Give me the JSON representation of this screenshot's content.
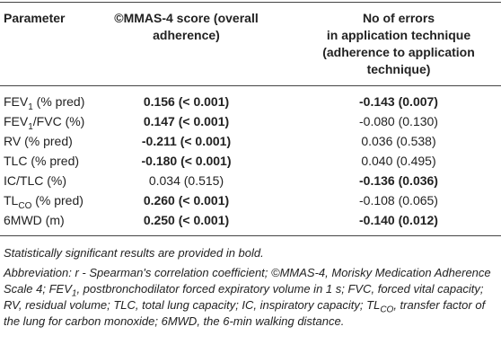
{
  "table": {
    "header": [
      [
        "Parameter"
      ],
      [
        "©MMAS-4 score (overall",
        "adherence)"
      ],
      [
        "No of errors",
        "in application technique",
        "(adherence to application",
        "technique)"
      ]
    ],
    "rows": [
      {
        "label": [
          {
            "text": "FEV"
          },
          {
            "text": "1",
            "sub": true
          },
          {
            "text": " (% pred)"
          }
        ],
        "cells": [
          {
            "text": "0.156 (< 0.001)",
            "bold": true
          },
          {
            "text": "-0.143 (0.007)",
            "bold": true
          }
        ]
      },
      {
        "label": [
          {
            "text": "FEV"
          },
          {
            "text": "1",
            "sub": true
          },
          {
            "text": "/FVC (%)"
          }
        ],
        "cells": [
          {
            "text": "0.147 (< 0.001)",
            "bold": true
          },
          {
            "text": "-0.080 (0.130)",
            "bold": false
          }
        ]
      },
      {
        "label": [
          {
            "text": "RV (% pred)"
          }
        ],
        "cells": [
          {
            "text": "-0.211 (< 0.001)",
            "bold": true
          },
          {
            "text": "0.036 (0.538)",
            "bold": false
          }
        ]
      },
      {
        "label": [
          {
            "text": "TLC (% pred)"
          }
        ],
        "cells": [
          {
            "text": "-0.180 (< 0.001)",
            "bold": true
          },
          {
            "text": "0.040 (0.495)",
            "bold": false
          }
        ]
      },
      {
        "label": [
          {
            "text": "IC/TLC (%)"
          }
        ],
        "cells": [
          {
            "text": "0.034 (0.515)",
            "bold": false
          },
          {
            "text": "-0.136 (0.036)",
            "bold": true
          }
        ]
      },
      {
        "label": [
          {
            "text": "TL"
          },
          {
            "text": "CO",
            "sub": true
          },
          {
            "text": " (% pred)"
          }
        ],
        "cells": [
          {
            "text": "0.260 (< 0.001)",
            "bold": true
          },
          {
            "text": "-0.108 (0.065)",
            "bold": false
          }
        ]
      },
      {
        "label": [
          {
            "text": "6MWD (m)"
          }
        ],
        "cells": [
          {
            "text": "0.250 (< 0.001)",
            "bold": true
          },
          {
            "text": "-0.140 (0.012)",
            "bold": true
          }
        ]
      }
    ]
  },
  "notes": [
    [
      {
        "text": "Statistically significant results are provided in bold."
      }
    ],
    [
      {
        "text": "Abbreviation: r - Spearman's correlation coefficient; ©MMAS-4, Morisky Medication Adherence Scale 4; FEV"
      },
      {
        "text": "1",
        "sub": true
      },
      {
        "text": ", postbronchodilator forced expiratory volume in 1 s; FVC, forced vital capacity; RV, residual volume; TLC, total lung capacity; IC, inspiratory capacity; TL"
      },
      {
        "text": "CO",
        "sub": true
      },
      {
        "text": ", transfer factor of the lung for carbon monoxide; 6MWD, the 6-min walking distance."
      }
    ]
  ]
}
